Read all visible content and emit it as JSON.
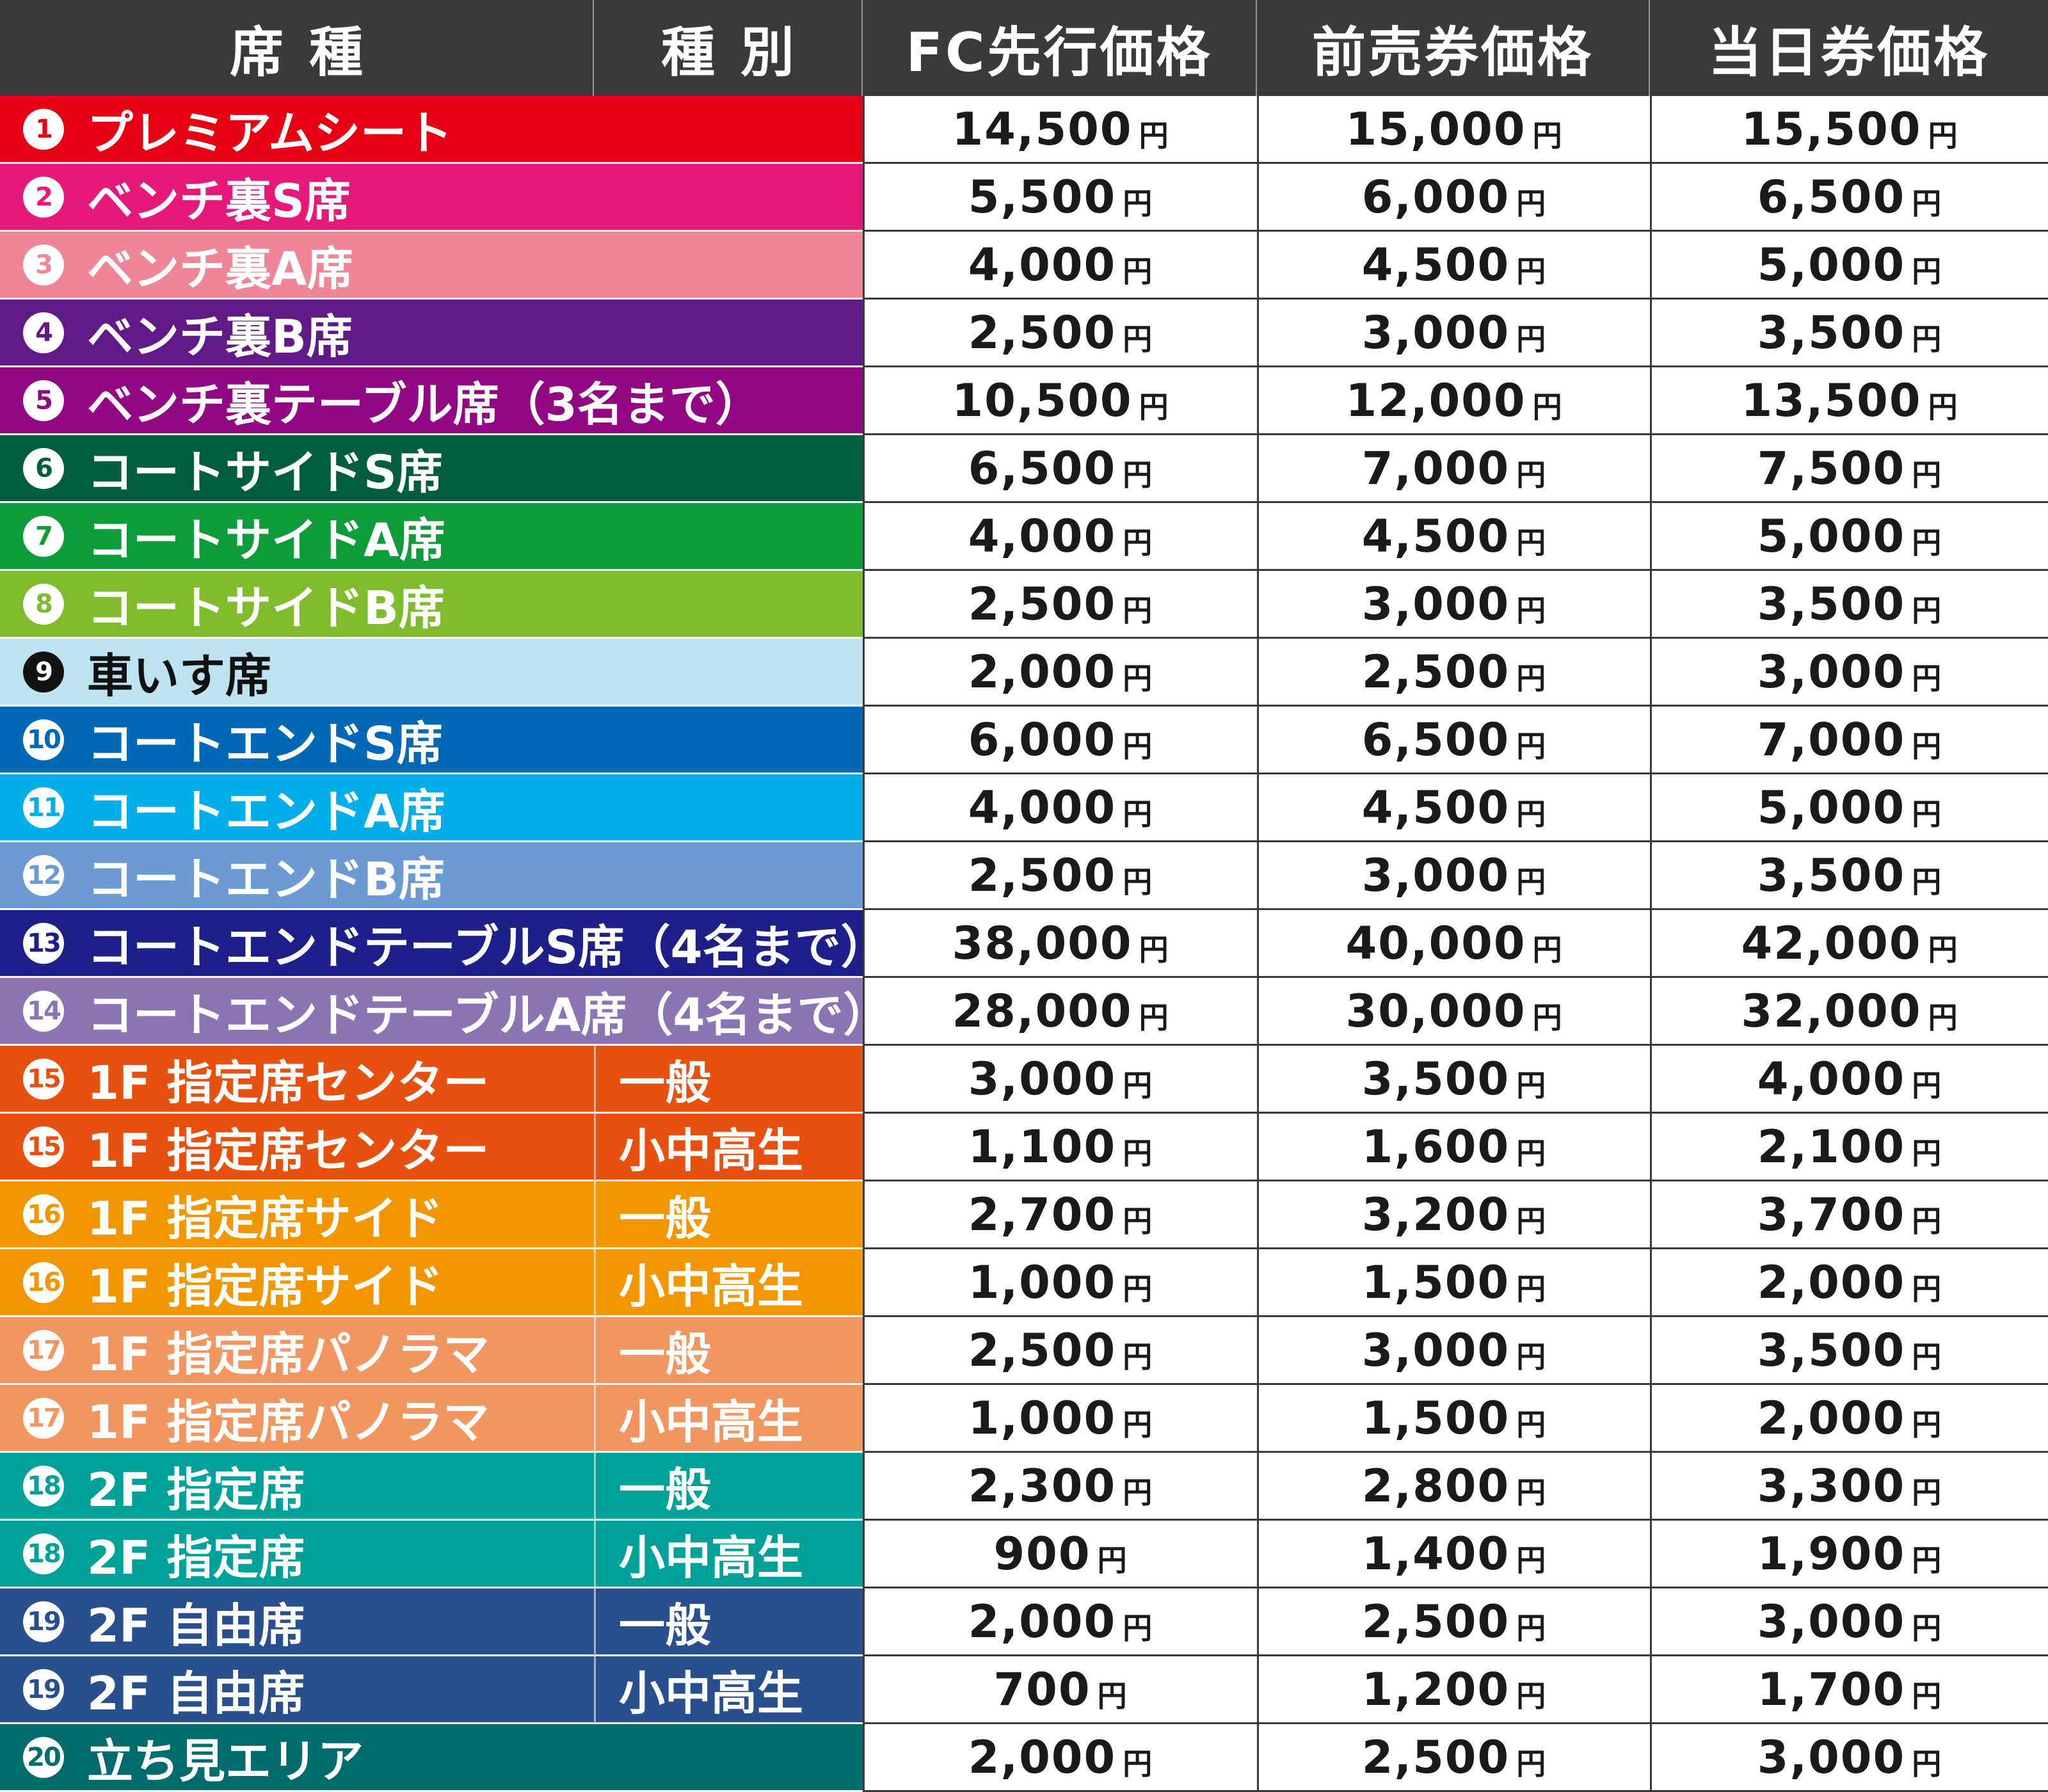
{
  "header": {
    "seat": "席種",
    "type": "種別",
    "fc": "FC先行価格",
    "advance": "前売券価格",
    "sameday": "当日券価格"
  },
  "yen_label": "円",
  "rows": [
    {
      "num": "1",
      "seat": "プレミアムシート",
      "type": "",
      "fc": "14,500",
      "advance": "15,000",
      "sameday": "15,500",
      "color": "#e60012",
      "text_color": "#ffffff"
    },
    {
      "num": "2",
      "seat": "ベンチ裏S席",
      "type": "",
      "fc": "5,500",
      "advance": "6,000",
      "sameday": "6,500",
      "color": "#e6197a",
      "text_color": "#ffffff"
    },
    {
      "num": "3",
      "seat": "ベンチ裏A席",
      "type": "",
      "fc": "4,000",
      "advance": "4,500",
      "sameday": "5,000",
      "color": "#ee8697",
      "text_color": "#ffffff"
    },
    {
      "num": "4",
      "seat": "ベンチ裏B席",
      "type": "",
      "fc": "2,500",
      "advance": "3,000",
      "sameday": "3,500",
      "color": "#601986",
      "text_color": "#ffffff"
    },
    {
      "num": "5",
      "seat": "ベンチ裏テーブル席（3名まで）",
      "type": "",
      "fc": "10,500",
      "advance": "12,000",
      "sameday": "13,500",
      "color": "#920783",
      "text_color": "#ffffff"
    },
    {
      "num": "6",
      "seat": "コートサイドS席",
      "type": "",
      "fc": "6,500",
      "advance": "7,000",
      "sameday": "7,500",
      "color": "#005e3c",
      "text_color": "#ffffff"
    },
    {
      "num": "7",
      "seat": "コートサイドA席",
      "type": "",
      "fc": "4,000",
      "advance": "4,500",
      "sameday": "5,000",
      "color": "#0e9b3a",
      "text_color": "#ffffff"
    },
    {
      "num": "8",
      "seat": "コートサイドB席",
      "type": "",
      "fc": "2,500",
      "advance": "3,000",
      "sameday": "3,500",
      "color": "#7ebb2d",
      "text_color": "#ffffff"
    },
    {
      "num": "9",
      "seat": "車いす席",
      "type": "",
      "fc": "2,000",
      "advance": "2,500",
      "sameday": "3,000",
      "color": "#bde2f0",
      "text_color": "#111111"
    },
    {
      "num": "10",
      "seat": "コートエンドS席",
      "type": "",
      "fc": "6,000",
      "advance": "6,500",
      "sameday": "7,000",
      "color": "#0068b7",
      "text_color": "#ffffff"
    },
    {
      "num": "11",
      "seat": "コートエンドA席",
      "type": "",
      "fc": "4,000",
      "advance": "4,500",
      "sameday": "5,000",
      "color": "#00aee9",
      "text_color": "#ffffff"
    },
    {
      "num": "12",
      "seat": "コートエンドB席",
      "type": "",
      "fc": "2,500",
      "advance": "3,000",
      "sameday": "3,500",
      "color": "#6c9bd2",
      "text_color": "#ffffff"
    },
    {
      "num": "13",
      "seat": "コートエンドテーブルS席（4名まで）",
      "type": "",
      "fc": "38,000",
      "advance": "40,000",
      "sameday": "42,000",
      "color": "#1d2088",
      "text_color": "#ffffff"
    },
    {
      "num": "14",
      "seat": "コートエンドテーブルA席（4名まで）",
      "type": "",
      "fc": "28,000",
      "advance": "30,000",
      "sameday": "32,000",
      "color": "#8a74b4",
      "text_color": "#ffffff"
    },
    {
      "num": "15",
      "seat": "1F 指定席センター",
      "type": "一般",
      "fc": "3,000",
      "advance": "3,500",
      "sameday": "4,000",
      "color": "#e8500f",
      "text_color": "#ffffff"
    },
    {
      "num": "15",
      "seat": "1F 指定席センター",
      "type": "小中高生",
      "fc": "1,100",
      "advance": "1,600",
      "sameday": "2,100",
      "color": "#e8500f",
      "text_color": "#ffffff"
    },
    {
      "num": "16",
      "seat": "1F 指定席サイド",
      "type": "一般",
      "fc": "2,700",
      "advance": "3,200",
      "sameday": "3,700",
      "color": "#f29600",
      "text_color": "#ffffff"
    },
    {
      "num": "16",
      "seat": "1F 指定席サイド",
      "type": "小中高生",
      "fc": "1,000",
      "advance": "1,500",
      "sameday": "2,000",
      "color": "#f29600",
      "text_color": "#ffffff"
    },
    {
      "num": "17",
      "seat": "1F 指定席パノラマ",
      "type": "一般",
      "fc": "2,500",
      "advance": "3,000",
      "sameday": "3,500",
      "color": "#f19660",
      "text_color": "#ffffff"
    },
    {
      "num": "17",
      "seat": "1F 指定席パノラマ",
      "type": "小中高生",
      "fc": "1,000",
      "advance": "1,500",
      "sameday": "2,000",
      "color": "#f19660",
      "text_color": "#ffffff"
    },
    {
      "num": "18",
      "seat": "2F 指定席",
      "type": "一般",
      "fc": "2,300",
      "advance": "2,800",
      "sameday": "3,300",
      "color": "#00a199",
      "text_color": "#ffffff"
    },
    {
      "num": "18",
      "seat": "2F 指定席",
      "type": "小中高生",
      "fc": "900",
      "advance": "1,400",
      "sameday": "1,900",
      "color": "#00a199",
      "text_color": "#ffffff"
    },
    {
      "num": "19",
      "seat": "2F 自由席",
      "type": "一般",
      "fc": "2,000",
      "advance": "2,500",
      "sameday": "3,000",
      "color": "#2a4f8f",
      "text_color": "#ffffff"
    },
    {
      "num": "19",
      "seat": "2F 自由席",
      "type": "小中高生",
      "fc": "700",
      "advance": "1,200",
      "sameday": "1,700",
      "color": "#2a4f8f",
      "text_color": "#ffffff"
    },
    {
      "num": "20",
      "seat": "立ち見エリア",
      "type": "",
      "fc": "2,000",
      "advance": "2,500",
      "sameday": "3,000",
      "color": "#006c6e",
      "text_color": "#ffffff"
    }
  ]
}
